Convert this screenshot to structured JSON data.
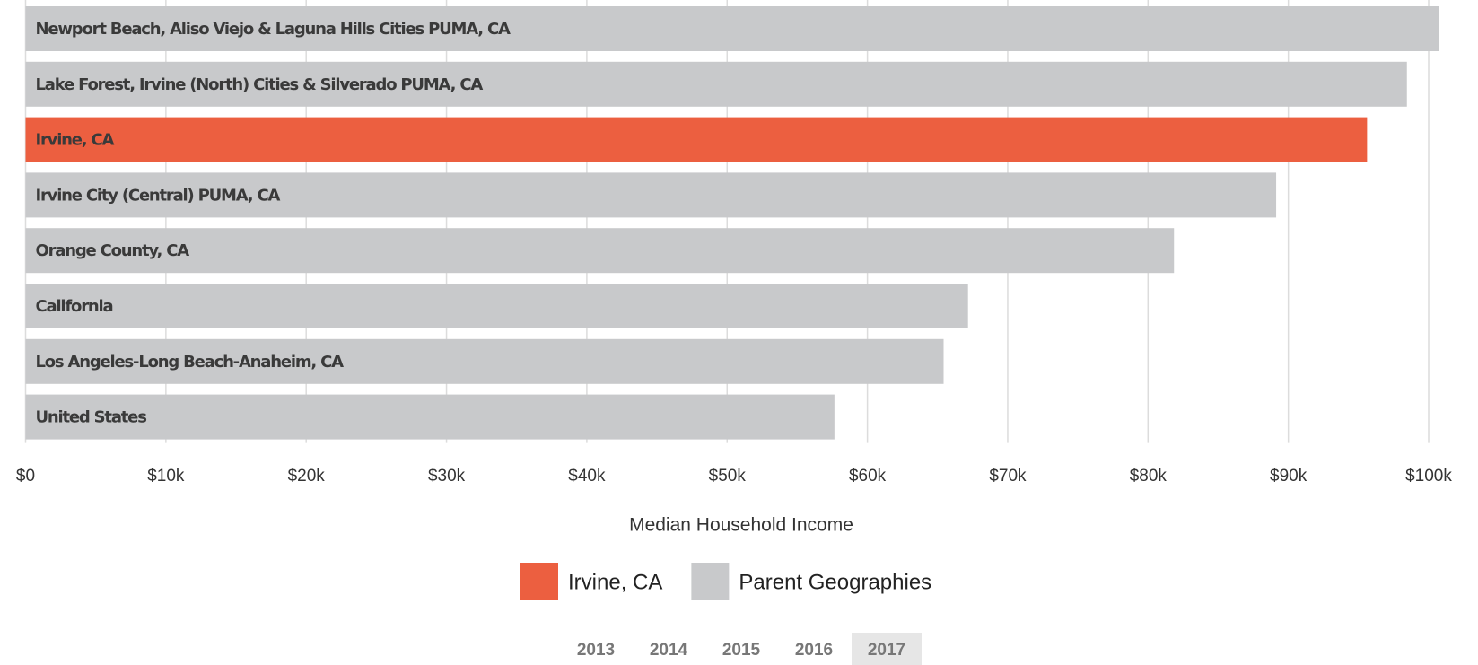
{
  "chart_data": {
    "type": "bar",
    "orientation": "horizontal",
    "categories": [
      "Newport Beach, Aliso Viejo & Laguna Hills Cities PUMA, CA",
      "Lake Forest, Irvine (North) Cities & Silverado PUMA, CA",
      "Irvine, CA",
      "Irvine City (Central) PUMA, CA",
      "Orange County, CA",
      "California",
      "Los Angeles-Long Beach-Anaheim, CA",
      "United States"
    ],
    "values": [
      100740,
      98450,
      95610,
      89130,
      81850,
      67170,
      65430,
      57650
    ],
    "colors": [
      "#c8c9cb",
      "#c8c9cb",
      "#ec5f40",
      "#c8c9cb",
      "#c8c9cb",
      "#c8c9cb",
      "#c8c9cb",
      "#c8c9cb"
    ],
    "xlim": [
      0,
      102000
    ],
    "xticks": [
      {
        "value": 0,
        "label": "$0"
      },
      {
        "value": 10000,
        "label": "$10k"
      },
      {
        "value": 20000,
        "label": "$20k"
      },
      {
        "value": 30000,
        "label": "$30k"
      },
      {
        "value": 40000,
        "label": "$40k"
      },
      {
        "value": 50000,
        "label": "$50k"
      },
      {
        "value": 60000,
        "label": "$60k"
      },
      {
        "value": 70000,
        "label": "$70k"
      },
      {
        "value": 80000,
        "label": "$80k"
      },
      {
        "value": 90000,
        "label": "$90k"
      },
      {
        "value": 100000,
        "label": "$100k"
      }
    ],
    "grid": true,
    "x_label": "Median Household Income",
    "legend": [
      {
        "name": "Irvine, CA",
        "color": "#ec5f40"
      },
      {
        "name": "Parent Geographies",
        "color": "#c8c9cb"
      }
    ],
    "years": [
      "2013",
      "2014",
      "2015",
      "2016",
      "2017"
    ],
    "selected_year": "2017"
  }
}
